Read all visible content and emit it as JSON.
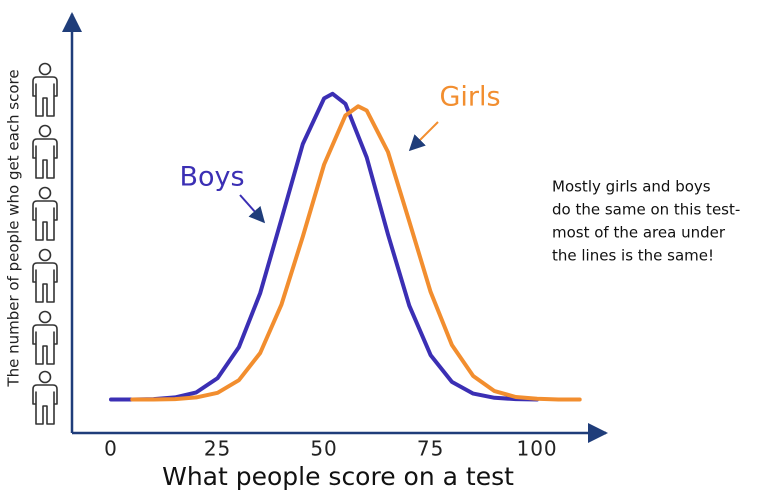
{
  "chart_data": {
    "type": "line",
    "y_label": "The number of people who get each score",
    "x_label": "What people score on a test",
    "xlim": [
      -9,
      115
    ],
    "ylim": [
      0,
      101
    ],
    "xticks": [
      0,
      25,
      50,
      75,
      100
    ],
    "grid": false,
    "series": [
      {
        "name": "Boys",
        "color": "#3b2fb4",
        "x": [
          0,
          5,
          10,
          15,
          20,
          25,
          30,
          35,
          40,
          45,
          50,
          52,
          55,
          60,
          65,
          70,
          75,
          80,
          85,
          90,
          95,
          100
        ],
        "values": [
          8,
          8,
          8.1,
          8.5,
          9.7,
          13.1,
          20.5,
          33.4,
          51.1,
          69,
          79.9,
          81,
          78.6,
          65.8,
          47.4,
          30.4,
          18.6,
          12.2,
          9.4,
          8.4,
          8.1,
          8
        ]
      },
      {
        "name": "Girls",
        "color": "#f28e2f",
        "x": [
          5,
          10,
          15,
          20,
          25,
          30,
          35,
          40,
          45,
          50,
          55,
          58,
          60,
          65,
          70,
          75,
          80,
          85,
          90,
          95,
          100,
          105,
          110
        ],
        "values": [
          8,
          8,
          8.1,
          8.5,
          9.6,
          12.6,
          19.1,
          30.7,
          46.9,
          64.1,
          75.8,
          78,
          77,
          67.1,
          50.5,
          33.7,
          21,
          13.6,
          10,
          8.6,
          8.2,
          8,
          8
        ]
      }
    ],
    "annotation": [
      "Mostly girls and boys",
      "do the same on this test-",
      "most of the area under",
      "the lines is the same!"
    ]
  }
}
